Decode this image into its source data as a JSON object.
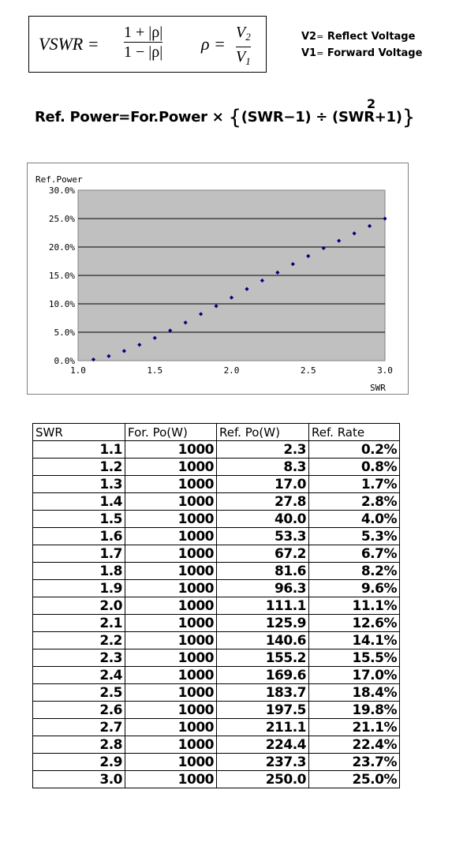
{
  "formula": {
    "vswr_lhs": "VSWR =",
    "vswr_num": "1 + |ρ|",
    "vswr_den": "1 − |ρ|",
    "rho_lhs": "ρ =",
    "rho_num": "V",
    "rho_num_sub": "2",
    "rho_den": "V",
    "rho_den_sub": "1"
  },
  "legend": {
    "v2_name": "V2",
    "v2_eq": "=",
    "v2_desc": "Reflect Voltage",
    "v1_name": "V1",
    "v1_eq": "=",
    "v1_desc": "Forward Voltage"
  },
  "ref_formula": {
    "text": "Ref. Power=For.Power × ",
    "brace_open": "{",
    "inner": "(SWR−1) ÷ (SWR+1)",
    "brace_close": "}",
    "exponent": "2"
  },
  "chart_data": {
    "type": "scatter",
    "ylabel": "Ref.Power",
    "xlabel": "SWR",
    "xlim": [
      1.0,
      3.0
    ],
    "ylim": [
      0.0,
      30.0
    ],
    "x_ticks": [
      "1.0",
      "1.5",
      "2.0",
      "2.5",
      "3.0"
    ],
    "y_ticks": [
      "0.0%",
      "5.0%",
      "10.0%",
      "15.0%",
      "20.0%",
      "25.0%",
      "30.0%"
    ],
    "grid": "horizontal",
    "plot_bg": "#c0c0c0",
    "marker_color": "#000080",
    "x": [
      1.1,
      1.2,
      1.3,
      1.4,
      1.5,
      1.6,
      1.7,
      1.8,
      1.9,
      2.0,
      2.1,
      2.2,
      2.3,
      2.4,
      2.5,
      2.6,
      2.7,
      2.8,
      2.9,
      3.0
    ],
    "y": [
      0.2,
      0.8,
      1.7,
      2.8,
      4.0,
      5.3,
      6.7,
      8.2,
      9.6,
      11.1,
      12.6,
      14.1,
      15.5,
      17.0,
      18.4,
      19.8,
      21.1,
      22.4,
      23.7,
      25.0
    ]
  },
  "table": {
    "headers": [
      "SWR",
      "For. Po(W)",
      "Ref. Po(W)",
      "Ref. Rate"
    ],
    "rows": [
      [
        "1.1",
        "1000",
        "2.3",
        "0.2%"
      ],
      [
        "1.2",
        "1000",
        "8.3",
        "0.8%"
      ],
      [
        "1.3",
        "1000",
        "17.0",
        "1.7%"
      ],
      [
        "1.4",
        "1000",
        "27.8",
        "2.8%"
      ],
      [
        "1.5",
        "1000",
        "40.0",
        "4.0%"
      ],
      [
        "1.6",
        "1000",
        "53.3",
        "5.3%"
      ],
      [
        "1.7",
        "1000",
        "67.2",
        "6.7%"
      ],
      [
        "1.8",
        "1000",
        "81.6",
        "8.2%"
      ],
      [
        "1.9",
        "1000",
        "96.3",
        "9.6%"
      ],
      [
        "2.0",
        "1000",
        "111.1",
        "11.1%"
      ],
      [
        "2.1",
        "1000",
        "125.9",
        "12.6%"
      ],
      [
        "2.2",
        "1000",
        "140.6",
        "14.1%"
      ],
      [
        "2.3",
        "1000",
        "155.2",
        "15.5%"
      ],
      [
        "2.4",
        "1000",
        "169.6",
        "17.0%"
      ],
      [
        "2.5",
        "1000",
        "183.7",
        "18.4%"
      ],
      [
        "2.6",
        "1000",
        "197.5",
        "19.8%"
      ],
      [
        "2.7",
        "1000",
        "211.1",
        "21.1%"
      ],
      [
        "2.8",
        "1000",
        "224.4",
        "22.4%"
      ],
      [
        "2.9",
        "1000",
        "237.3",
        "23.7%"
      ],
      [
        "3.0",
        "1000",
        "250.0",
        "25.0%"
      ]
    ]
  }
}
